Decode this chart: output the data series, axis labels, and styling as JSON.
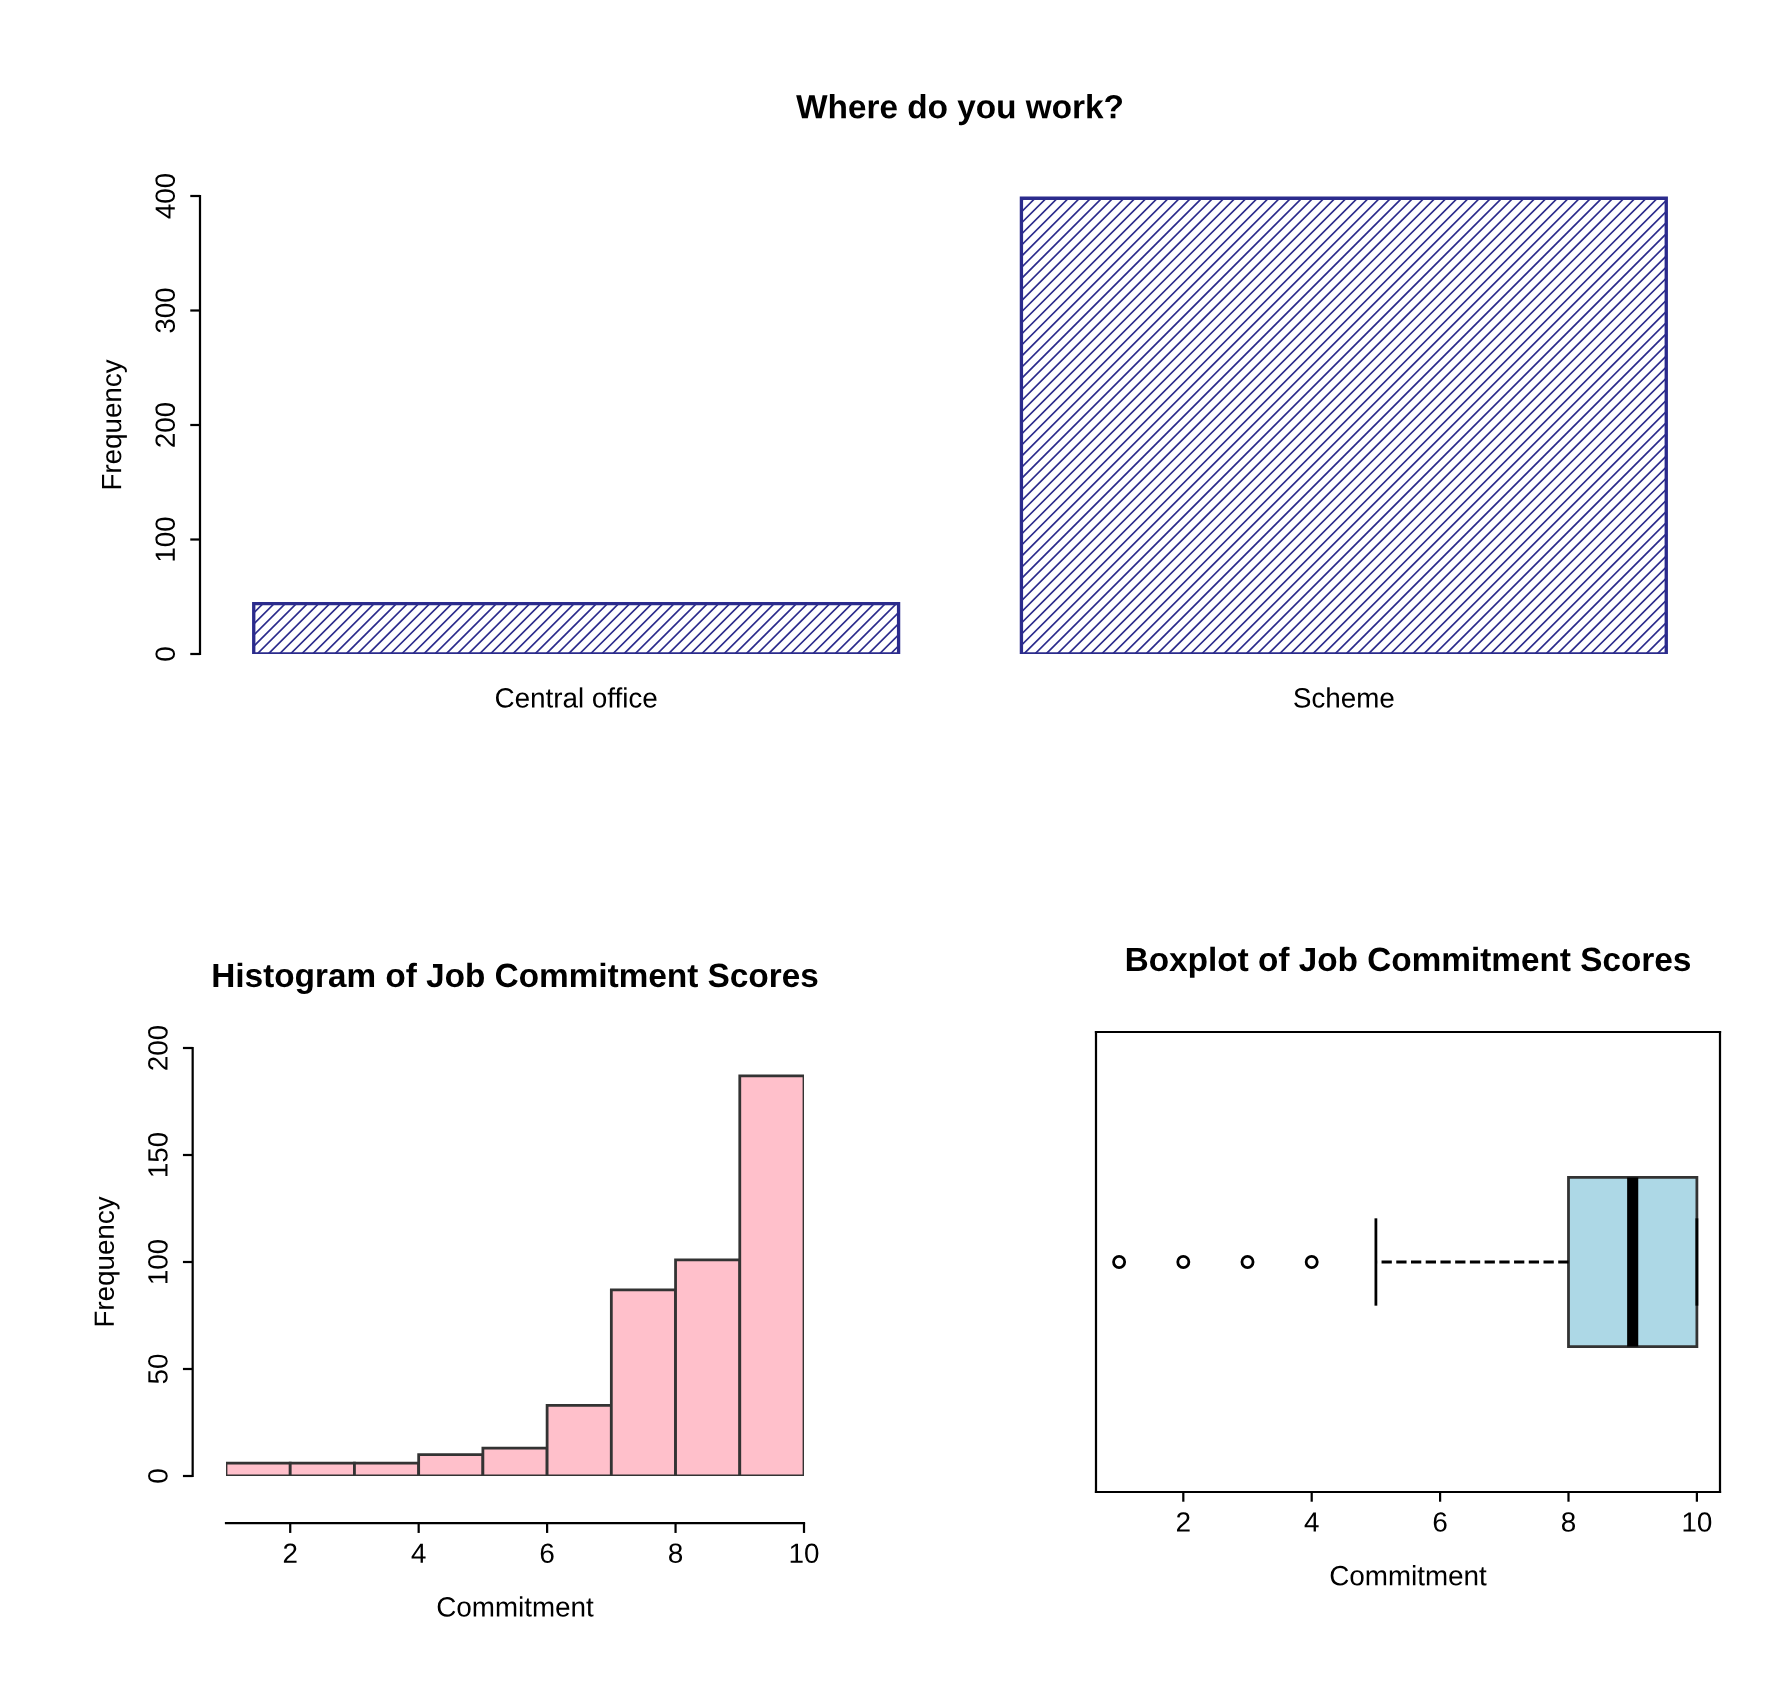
{
  "chart_data": [
    {
      "type": "bar",
      "title": "Where do you work?",
      "ylabel": "Frequency",
      "categories": [
        "Central office",
        "Scheme"
      ],
      "values": [
        44,
        398
      ],
      "color": "#2b2b8c",
      "ylim": [
        0,
        400
      ],
      "yticks": [
        0,
        100,
        200,
        300,
        400
      ]
    },
    {
      "type": "histogram",
      "title": "Histogram of Job Commitment Scores",
      "xlabel": "Commitment",
      "ylabel": "Frequency",
      "bins": [
        1,
        2,
        3,
        4,
        5,
        6,
        7,
        8,
        9,
        10
      ],
      "values": [
        6,
        6,
        6,
        10,
        13,
        33,
        87,
        101,
        187
      ],
      "color": "#ffc0cb",
      "xlim": [
        1,
        10
      ],
      "xticks": [
        2,
        4,
        6,
        8,
        10
      ],
      "ylim": [
        0,
        200
      ],
      "yticks": [
        0,
        50,
        100,
        150,
        200
      ]
    },
    {
      "type": "box",
      "title": "Boxplot of Job Commitment Scores",
      "xlabel": "Commitment",
      "orientation": "horizontal",
      "boxes": [
        {
          "low": 5,
          "q1": 8,
          "median": 9,
          "q3": 10,
          "high": 10,
          "outliers": [
            1,
            2,
            3,
            4
          ]
        }
      ],
      "color": "#add8e6",
      "xlim": [
        0.64,
        10.36
      ],
      "xticks": [
        2,
        4,
        6,
        8,
        10
      ],
      "tick_labels": "x"
    }
  ]
}
